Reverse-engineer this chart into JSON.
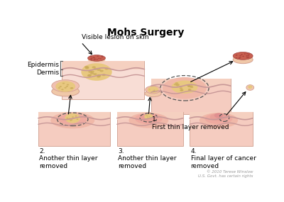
{
  "title": "Mohs Surgery",
  "title_fontsize": 10,
  "title_fontweight": "bold",
  "bg_color": "#ffffff",
  "skin_surface_color": "#f5d5c0",
  "skin_epi_color": "#f5c8b8",
  "skin_dermis_color": "#f0b8b0",
  "skin_body_color": "#f8ddd5",
  "cancer_tan": "#e8c880",
  "cancer_dark": "#d4b060",
  "lesion_red": "#c86050",
  "lesion_dark_red": "#a84040",
  "lesion_pink": "#e8a080",
  "wave_color": "#d4908080",
  "dashed_col": "#606060",
  "epidermis_label": "Epidermis",
  "dermis_label": "Dermis",
  "visible_lesion_label": "Visible lesion on skin",
  "step1_label": "1.\nFirst thin layer removed",
  "step2_label": "2.\nAnother thin layer\nremoved",
  "step3_label": "3.\nAnother thin layer\nremoved",
  "step4_label": "4.\nFinal layer of cancer\nremoved",
  "copyright": "© 2010 Terese Winslow\nU.S. Govt. has certain rights",
  "font_size": 6.5
}
